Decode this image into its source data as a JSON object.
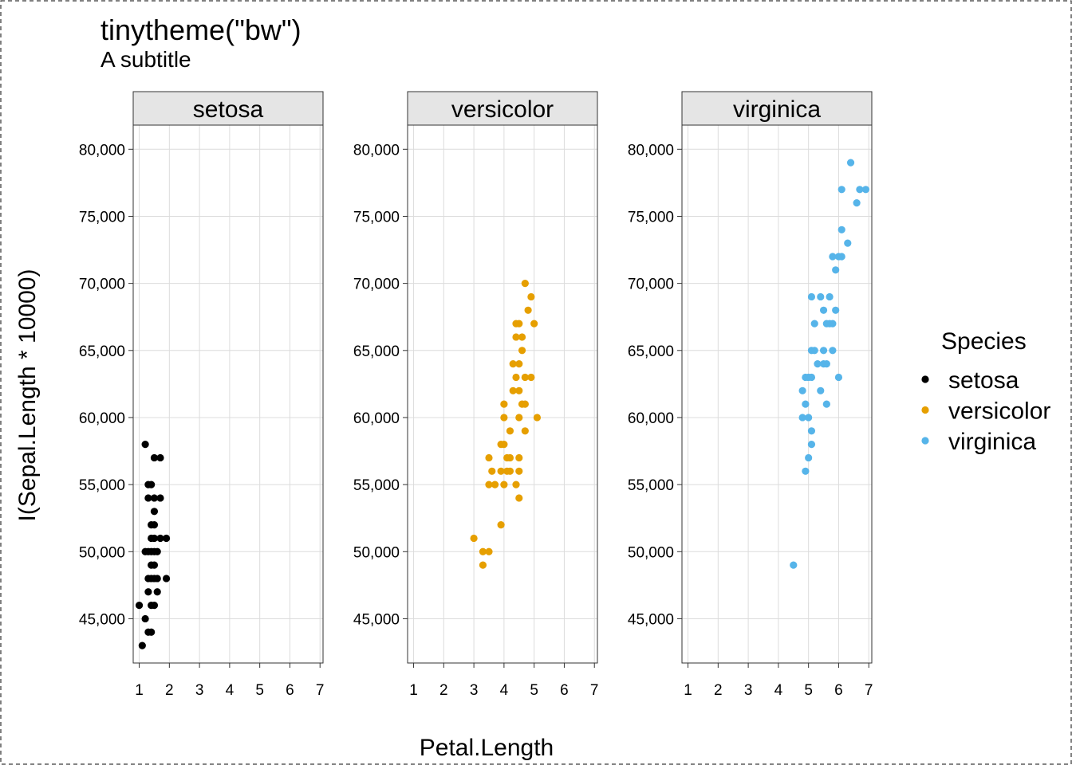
{
  "chart_data": {
    "type": "scatter",
    "title": "tinytheme(\"bw\")",
    "subtitle": "A subtitle",
    "xlabel": "Petal.Length",
    "ylabel": "I(Sepal.Length * 10000)",
    "xlim": [
      0.8,
      7.1
    ],
    "ylim": [
      41700,
      81800
    ],
    "x_ticks": [
      1,
      2,
      3,
      4,
      5,
      6,
      7
    ],
    "x_tick_labels": [
      "1",
      "2",
      "3",
      "4",
      "5",
      "6",
      "7"
    ],
    "y_ticks": [
      45000,
      50000,
      55000,
      60000,
      65000,
      70000,
      75000,
      80000
    ],
    "y_tick_labels": [
      "45,000",
      "50,000",
      "55,000",
      "60,000",
      "65,000",
      "70,000",
      "75,000",
      "80,000"
    ],
    "grid": true,
    "legend": {
      "title": "Species",
      "placement": "right"
    },
    "facets": [
      "setosa",
      "versicolor",
      "virginica"
    ],
    "series": [
      {
        "name": "setosa",
        "color": "#000000",
        "points": [
          [
            1.1,
            43000
          ],
          [
            1.0,
            46000
          ],
          [
            1.2,
            58000
          ],
          [
            1.3,
            44000
          ],
          [
            1.4,
            44000
          ],
          [
            1.2,
            45000
          ],
          [
            1.3,
            47000
          ],
          [
            1.4,
            46000
          ],
          [
            1.5,
            46000
          ],
          [
            1.6,
            47000
          ],
          [
            1.3,
            48000
          ],
          [
            1.4,
            48000
          ],
          [
            1.5,
            48000
          ],
          [
            1.6,
            48000
          ],
          [
            1.9,
            48000
          ],
          [
            1.4,
            49000
          ],
          [
            1.5,
            49000
          ],
          [
            1.2,
            50000
          ],
          [
            1.3,
            50000
          ],
          [
            1.4,
            50000
          ],
          [
            1.5,
            50000
          ],
          [
            1.6,
            50000
          ],
          [
            1.4,
            51000
          ],
          [
            1.5,
            51000
          ],
          [
            1.7,
            51000
          ],
          [
            1.9,
            51000
          ],
          [
            1.4,
            52000
          ],
          [
            1.5,
            52000
          ],
          [
            1.5,
            53000
          ],
          [
            1.3,
            54000
          ],
          [
            1.5,
            54000
          ],
          [
            1.7,
            54000
          ],
          [
            1.3,
            55000
          ],
          [
            1.4,
            55000
          ],
          [
            1.5,
            57000
          ],
          [
            1.7,
            57000
          ]
        ]
      },
      {
        "name": "versicolor",
        "color": "#E69F00",
        "points": [
          [
            3.3,
            49000
          ],
          [
            3.0,
            51000
          ],
          [
            3.3,
            50000
          ],
          [
            3.5,
            50000
          ],
          [
            3.9,
            52000
          ],
          [
            3.5,
            55000
          ],
          [
            3.7,
            55000
          ],
          [
            4.0,
            55000
          ],
          [
            4.4,
            55000
          ],
          [
            4.5,
            54000
          ],
          [
            3.6,
            56000
          ],
          [
            3.9,
            56000
          ],
          [
            4.1,
            56000
          ],
          [
            4.2,
            56000
          ],
          [
            4.5,
            56000
          ],
          [
            3.5,
            57000
          ],
          [
            4.1,
            57000
          ],
          [
            4.2,
            57000
          ],
          [
            4.5,
            57000
          ],
          [
            3.9,
            58000
          ],
          [
            4.0,
            58000
          ],
          [
            4.7,
            59000
          ],
          [
            4.2,
            59000
          ],
          [
            4.0,
            60000
          ],
          [
            4.5,
            60000
          ],
          [
            5.1,
            60000
          ],
          [
            4.0,
            61000
          ],
          [
            4.6,
            61000
          ],
          [
            4.7,
            61000
          ],
          [
            4.3,
            62000
          ],
          [
            4.5,
            62000
          ],
          [
            4.4,
            63000
          ],
          [
            4.7,
            63000
          ],
          [
            4.9,
            63000
          ],
          [
            4.3,
            64000
          ],
          [
            4.5,
            64000
          ],
          [
            4.6,
            65000
          ],
          [
            4.4,
            66000
          ],
          [
            4.6,
            66000
          ],
          [
            4.4,
            67000
          ],
          [
            4.5,
            67000
          ],
          [
            5.0,
            67000
          ],
          [
            4.8,
            68000
          ],
          [
            4.9,
            69000
          ],
          [
            4.7,
            70000
          ]
        ]
      },
      {
        "name": "virginica",
        "color": "#56B4E9",
        "points": [
          [
            4.5,
            49000
          ],
          [
            4.9,
            56000
          ],
          [
            5.0,
            57000
          ],
          [
            5.1,
            58000
          ],
          [
            5.1,
            59000
          ],
          [
            4.8,
            60000
          ],
          [
            5.0,
            60000
          ],
          [
            4.9,
            61000
          ],
          [
            5.6,
            61000
          ],
          [
            4.8,
            62000
          ],
          [
            5.4,
            62000
          ],
          [
            4.9,
            63000
          ],
          [
            5.0,
            63000
          ],
          [
            5.1,
            63000
          ],
          [
            6.0,
            63000
          ],
          [
            5.3,
            64000
          ],
          [
            5.5,
            64000
          ],
          [
            5.6,
            64000
          ],
          [
            5.1,
            65000
          ],
          [
            5.2,
            65000
          ],
          [
            5.5,
            65000
          ],
          [
            5.8,
            65000
          ],
          [
            5.2,
            67000
          ],
          [
            5.6,
            67000
          ],
          [
            5.7,
            67000
          ],
          [
            5.8,
            67000
          ],
          [
            5.5,
            68000
          ],
          [
            5.9,
            68000
          ],
          [
            5.1,
            69000
          ],
          [
            5.4,
            69000
          ],
          [
            5.7,
            69000
          ],
          [
            5.9,
            71000
          ],
          [
            5.8,
            72000
          ],
          [
            6.0,
            72000
          ],
          [
            6.1,
            72000
          ],
          [
            6.3,
            73000
          ],
          [
            6.1,
            74000
          ],
          [
            6.6,
            76000
          ],
          [
            6.1,
            77000
          ],
          [
            6.7,
            77000
          ],
          [
            6.9,
            77000
          ],
          [
            6.4,
            79000
          ]
        ]
      }
    ]
  }
}
